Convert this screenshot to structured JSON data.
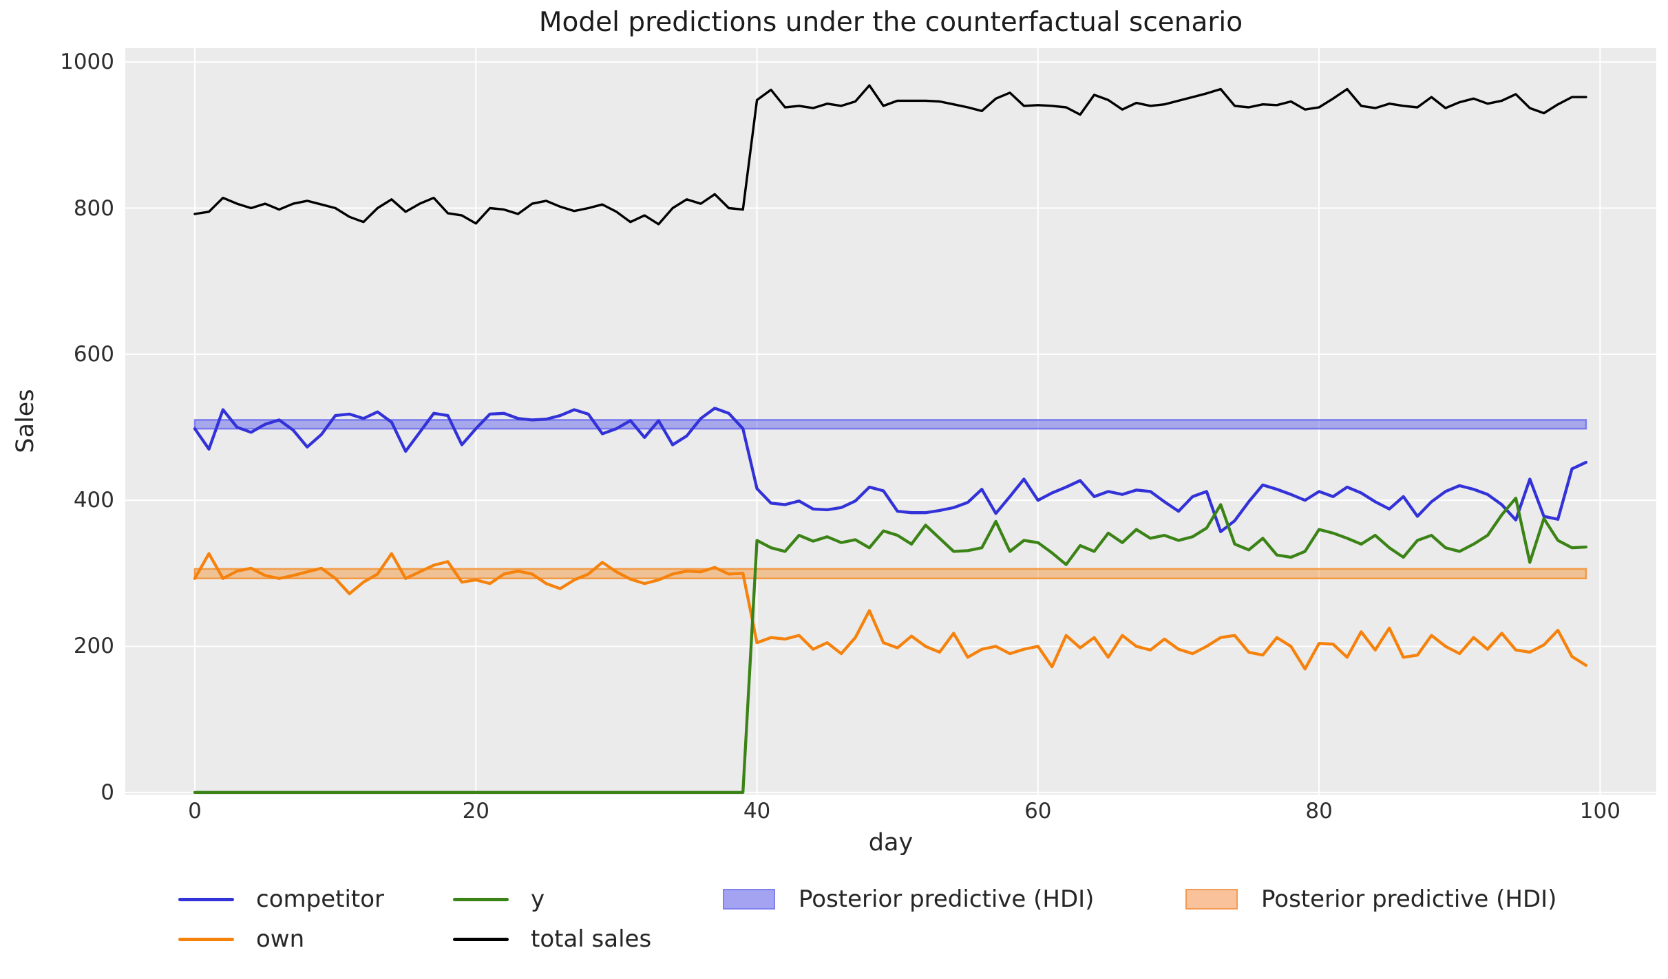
{
  "title": "Model predictions under the counterfactual scenario",
  "axes": {
    "xlabel": "day",
    "ylabel": "Sales",
    "xticks": [
      0,
      20,
      40,
      60,
      80,
      100
    ],
    "yticks": [
      0,
      200,
      400,
      600,
      800,
      1000
    ]
  },
  "colors": {
    "figure_bg": "#ffffff",
    "plot_bg": "#ebebeb",
    "grid": "#ffffff",
    "competitor": "#3232d8",
    "own": "#f5820d",
    "y": "#3b8316",
    "total_sales": "#000000",
    "hdi_blue_fill": "rgba(85,85,235,0.45)",
    "hdi_blue_edge": "rgba(110,110,240,0.85)",
    "hdi_orange_fill": "rgba(246,139,31,0.42)",
    "hdi_orange_edge": "rgba(243,148,57,0.9)"
  },
  "legend": {
    "items": [
      {
        "label": "competitor",
        "type": "line",
        "color": "#3232d8"
      },
      {
        "label": "own",
        "type": "line",
        "color": "#f5820d"
      },
      {
        "label": "y",
        "type": "line",
        "color": "#3b8316"
      },
      {
        "label": "total sales",
        "type": "line",
        "color": "#000000"
      },
      {
        "label": "Posterior predictive (HDI)",
        "type": "patch",
        "fill": "#a3a3f2",
        "edge": "#8181ee"
      },
      {
        "label": "Posterior predictive (HDI)",
        "type": "patch",
        "fill": "#f9c29a",
        "edge": "#f49a52"
      }
    ]
  },
  "chart_data": {
    "type": "line",
    "title": "Model predictions under the counterfactual scenario",
    "xlabel": "day",
    "ylabel": "Sales",
    "xlim": [
      -4.95,
      104.0
    ],
    "ylim": [
      -3,
      1019
    ],
    "grid": true,
    "legend_position": "bottom",
    "x": [
      0,
      1,
      2,
      3,
      4,
      5,
      6,
      7,
      8,
      9,
      10,
      11,
      12,
      13,
      14,
      15,
      16,
      17,
      18,
      19,
      20,
      21,
      22,
      23,
      24,
      25,
      26,
      27,
      28,
      29,
      30,
      31,
      32,
      33,
      34,
      35,
      36,
      37,
      38,
      39,
      40,
      41,
      42,
      43,
      44,
      45,
      46,
      47,
      48,
      49,
      50,
      51,
      52,
      53,
      54,
      55,
      56,
      57,
      58,
      59,
      60,
      61,
      62,
      63,
      64,
      65,
      66,
      67,
      68,
      69,
      70,
      71,
      72,
      73,
      74,
      75,
      76,
      77,
      78,
      79,
      80,
      81,
      82,
      83,
      84,
      85,
      86,
      87,
      88,
      89,
      90,
      91,
      92,
      93,
      94,
      95,
      96,
      97,
      98,
      99
    ],
    "series": [
      {
        "name": "competitor",
        "color": "#3232d8",
        "width": 4.3,
        "values": [
          498,
          470,
          524,
          500,
          493,
          504,
          510,
          496,
          473,
          490,
          516,
          518,
          512,
          521,
          507,
          467,
          493,
          519,
          516,
          476,
          498,
          518,
          519,
          512,
          510,
          511,
          516,
          524,
          518,
          491,
          498,
          509,
          486,
          509,
          476,
          488,
          512,
          526,
          519,
          498,
          416,
          396,
          394,
          399,
          388,
          387,
          390,
          399,
          418,
          413,
          385,
          383,
          383,
          386,
          390,
          397,
          415,
          382,
          405,
          429,
          400,
          410,
          418,
          427,
          405,
          412,
          408,
          414,
          412,
          398,
          385,
          405,
          412,
          357,
          372,
          398,
          421,
          415,
          408,
          400,
          412,
          405,
          418,
          410,
          398,
          388,
          405,
          378,
          398,
          412,
          420,
          415,
          408,
          394,
          373,
          429,
          378,
          374,
          443,
          452
        ]
      },
      {
        "name": "own",
        "color": "#f5820d",
        "width": 4.3,
        "values": [
          293,
          327,
          293,
          303,
          307,
          297,
          293,
          297,
          302,
          307,
          293,
          272,
          288,
          299,
          327,
          293,
          302,
          311,
          316,
          288,
          291,
          286,
          299,
          303,
          299,
          286,
          279,
          291,
          299,
          315,
          302,
          292,
          286,
          291,
          299,
          303,
          302,
          308,
          299,
          300,
          205,
          212,
          210,
          215,
          196,
          205,
          190,
          212,
          249,
          205,
          198,
          214,
          200,
          192,
          218,
          185,
          196,
          200,
          190,
          196,
          200,
          172,
          215,
          198,
          212,
          185,
          215,
          200,
          195,
          210,
          196,
          190,
          200,
          212,
          215,
          192,
          188,
          212,
          200,
          169,
          204,
          203,
          185,
          220,
          195,
          225,
          185,
          188,
          215,
          200,
          190,
          212,
          196,
          218,
          195,
          192,
          202,
          222,
          186,
          174
        ]
      },
      {
        "name": "y",
        "color": "#3b8316",
        "width": 4.3,
        "values": [
          0,
          0,
          0,
          0,
          0,
          0,
          0,
          0,
          0,
          0,
          0,
          0,
          0,
          0,
          0,
          0,
          0,
          0,
          0,
          0,
          0,
          0,
          0,
          0,
          0,
          0,
          0,
          0,
          0,
          0,
          0,
          0,
          0,
          0,
          0,
          0,
          0,
          0,
          0,
          0,
          345,
          335,
          330,
          352,
          344,
          350,
          342,
          346,
          335,
          358,
          352,
          340,
          366,
          348,
          330,
          331,
          335,
          371,
          330,
          345,
          342,
          328,
          312,
          338,
          330,
          355,
          342,
          360,
          348,
          352,
          345,
          350,
          362,
          394,
          340,
          332,
          348,
          325,
          322,
          330,
          360,
          355,
          348,
          340,
          352,
          335,
          322,
          345,
          352,
          335,
          330,
          340,
          352,
          380,
          403,
          315,
          375,
          345,
          335,
          336
        ]
      },
      {
        "name": "total sales",
        "color": "#000000",
        "width": 3.4,
        "values": [
          792,
          795,
          814,
          806,
          800,
          806,
          798,
          806,
          810,
          805,
          800,
          788,
          781,
          800,
          812,
          795,
          806,
          814,
          793,
          790,
          779,
          800,
          798,
          792,
          806,
          810,
          802,
          796,
          800,
          805,
          795,
          781,
          790,
          778,
          800,
          812,
          806,
          819,
          800,
          798,
          948,
          962,
          938,
          940,
          937,
          943,
          940,
          946,
          968,
          940,
          947,
          947,
          947,
          946,
          942,
          938,
          933,
          950,
          958,
          940,
          941,
          940,
          938,
          928,
          955,
          948,
          935,
          944,
          940,
          942,
          947,
          952,
          957,
          963,
          940,
          938,
          942,
          941,
          946,
          935,
          938,
          950,
          963,
          940,
          937,
          943,
          940,
          938,
          952,
          937,
          945,
          950,
          943,
          947,
          956,
          937,
          930,
          942,
          952,
          952
        ]
      }
    ],
    "bands": [
      {
        "name": "Posterior predictive (HDI) competitor",
        "lo": 498,
        "hi": 510,
        "x0": 0,
        "x1": 99,
        "fill": "rgba(85,85,235,0.45)",
        "edge": "rgba(110,110,240,0.85)"
      },
      {
        "name": "Posterior predictive (HDI) own",
        "lo": 293,
        "hi": 306,
        "x0": 0,
        "x1": 99,
        "fill": "rgba(246,139,31,0.42)",
        "edge": "rgba(243,148,57,0.9)"
      }
    ]
  }
}
